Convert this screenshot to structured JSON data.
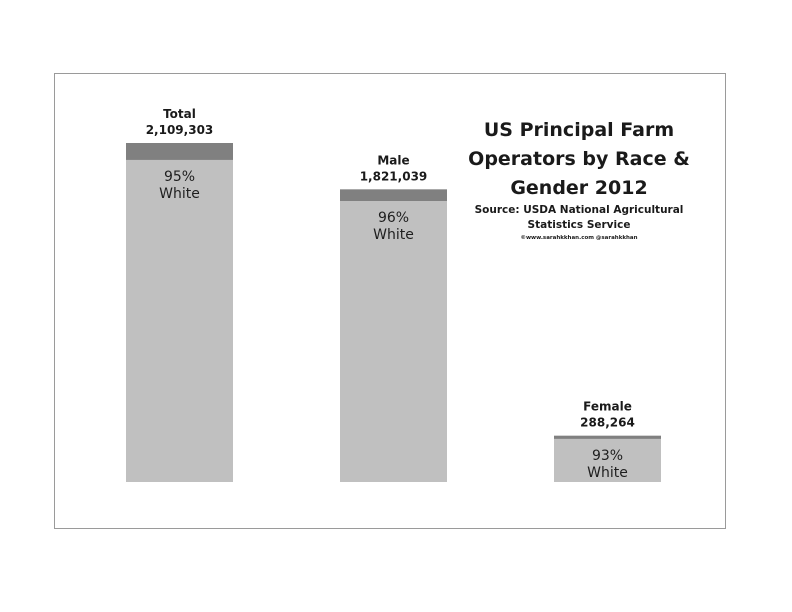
{
  "chart_data": {
    "type": "bar",
    "title": "US Principal Farm Operators by Race & Gender 2012",
    "title_lines": [
      "US Principal Farm",
      "Operators by Race &",
      "Gender 2012"
    ],
    "source_lines": [
      "Source: USDA National Agricultural",
      "Statistics Service"
    ],
    "credit": "©www.sarahkkhan.com @sarahkkhan",
    "categories": [
      "Total",
      "Male",
      "Female"
    ],
    "values": [
      2109303,
      1821039,
      288264
    ],
    "value_labels": [
      "2,109,303",
      "1,821,039",
      "288,264"
    ],
    "white_share_percent": [
      95,
      96,
      93
    ],
    "segment_labels": [
      "95%\nWhite",
      "96%\nWhite",
      "93%\nWhite"
    ],
    "ylim": [
      0,
      2109303
    ],
    "grid": false,
    "colors": {
      "white_segment": "#c0c0c0",
      "other_segment": "#808080"
    }
  }
}
